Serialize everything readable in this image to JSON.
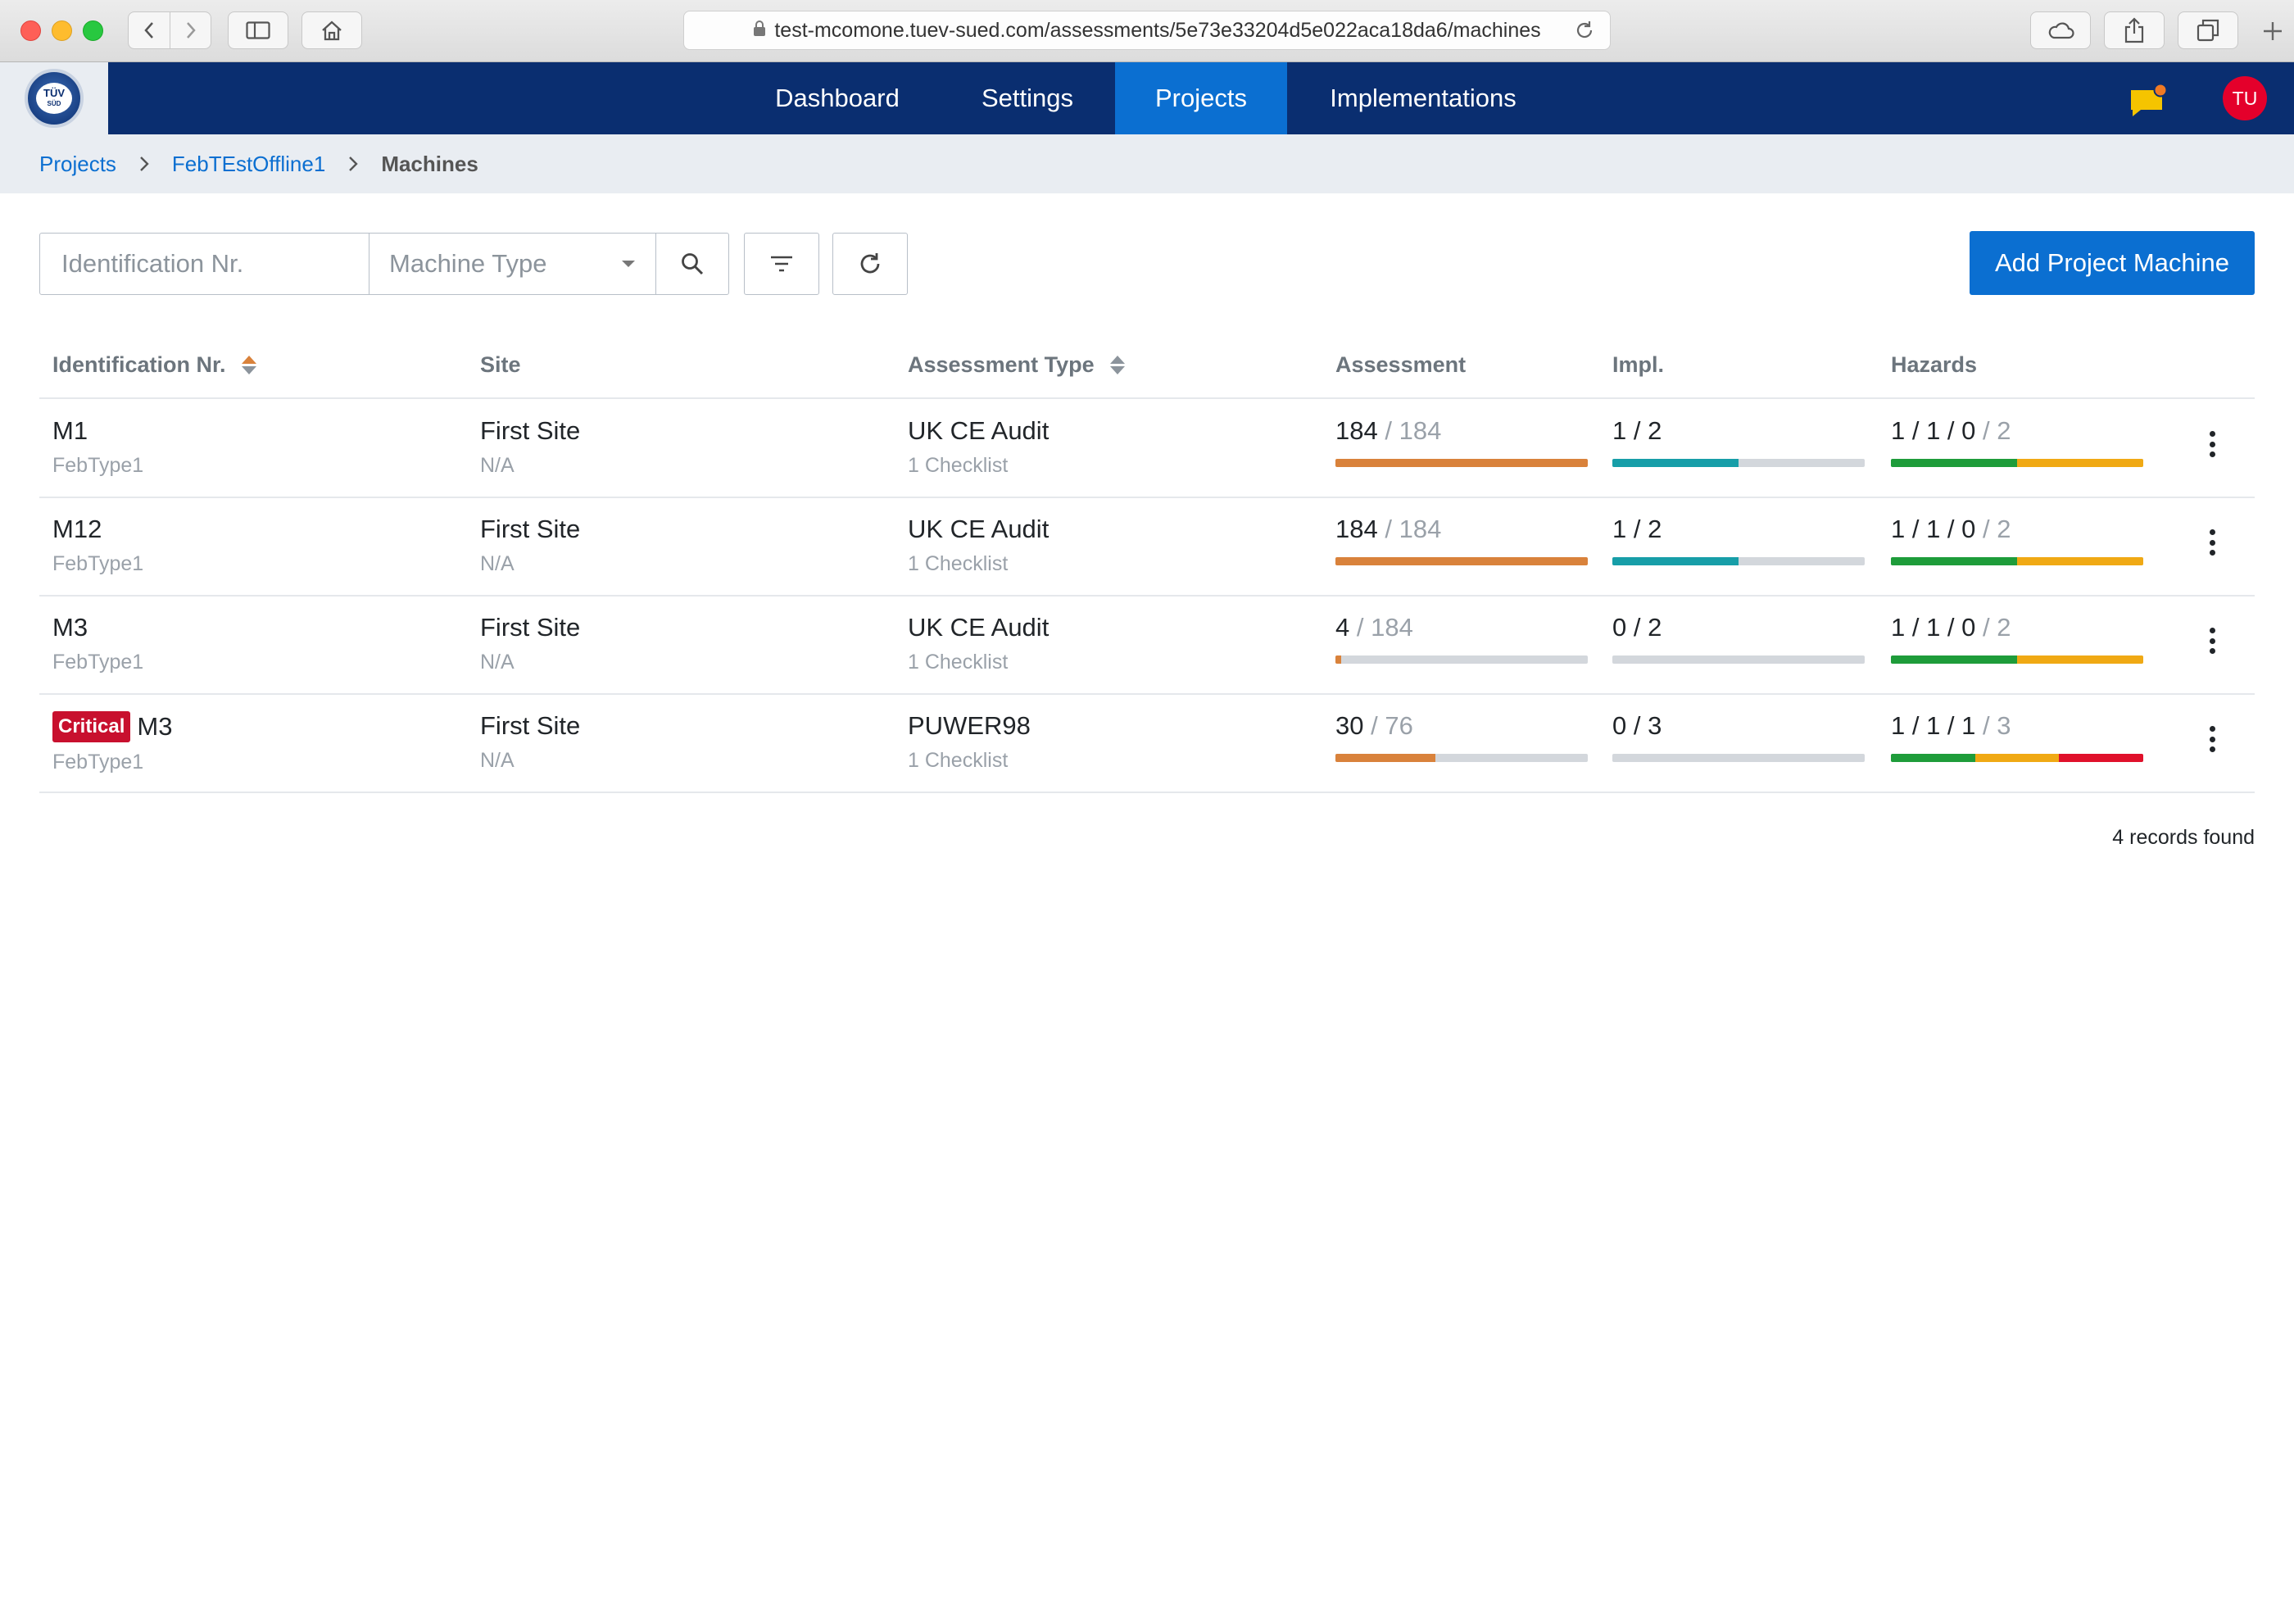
{
  "browser": {
    "url": "test-mcomone.tuev-sued.com/assessments/5e73e33204d5e022aca18da6/machines"
  },
  "header": {
    "logo_text": "TÜV",
    "logo_sub": "SÜD",
    "nav": [
      {
        "label": "Dashboard",
        "active": false
      },
      {
        "label": "Settings",
        "active": false
      },
      {
        "label": "Projects",
        "active": true
      },
      {
        "label": "Implementations",
        "active": false
      }
    ],
    "avatar_initials": "TU",
    "colors": {
      "header_bg": "#0a2e70",
      "accent": "#0b6fd1",
      "avatar": "#e4002b",
      "chat": "#f5c400"
    }
  },
  "breadcrumb": {
    "items": [
      "Projects",
      "FebTEstOffline1"
    ],
    "current": "Machines"
  },
  "toolbar": {
    "id_placeholder": "Identification Nr.",
    "type_placeholder": "Machine Type",
    "add_label": "Add Project Machine"
  },
  "table": {
    "columns": [
      "Identification Nr.",
      "Site",
      "Assessment Type",
      "Assessment",
      "Impl.",
      "Hazards"
    ],
    "rows": [
      {
        "badge": "",
        "id": "M1",
        "type": "FebType1",
        "site": "First Site",
        "site_sub": "N/A",
        "assessment_type": "UK CE Audit",
        "checklists": "1 Checklist",
        "assessment_done": "184",
        "assessment_total": "/ 184",
        "assessment_ratio": 1.0,
        "impl": "1 / 2",
        "impl_ratio": 0.5,
        "hazards_counts": "1 / 1 / 0",
        "hazards_total": "/ 2",
        "hazards_split": [
          1,
          1,
          0
        ]
      },
      {
        "badge": "",
        "id": "M12",
        "type": "FebType1",
        "site": "First Site",
        "site_sub": "N/A",
        "assessment_type": "UK CE Audit",
        "checklists": "1 Checklist",
        "assessment_done": "184",
        "assessment_total": "/ 184",
        "assessment_ratio": 1.0,
        "impl": "1 / 2",
        "impl_ratio": 0.5,
        "hazards_counts": "1 / 1 / 0",
        "hazards_total": "/ 2",
        "hazards_split": [
          1,
          1,
          0
        ]
      },
      {
        "badge": "",
        "id": "M3",
        "type": "FebType1",
        "site": "First Site",
        "site_sub": "N/A",
        "assessment_type": "UK CE Audit",
        "checklists": "1 Checklist",
        "assessment_done": "4",
        "assessment_total": "/ 184",
        "assessment_ratio": 0.022,
        "impl": "0 / 2",
        "impl_ratio": 0,
        "hazards_counts": "1 / 1 / 0",
        "hazards_total": "/ 2",
        "hazards_split": [
          1,
          1,
          0
        ]
      },
      {
        "badge": "Critical",
        "id": "M3",
        "type": "FebType1",
        "site": "First Site",
        "site_sub": "N/A",
        "assessment_type": "PUWER98",
        "checklists": "1 Checklist",
        "assessment_done": "30",
        "assessment_total": "/ 76",
        "assessment_ratio": 0.395,
        "impl": "0 / 3",
        "impl_ratio": 0,
        "hazards_counts": "1 / 1 / 1",
        "hazards_total": "/ 3",
        "hazards_split": [
          1,
          1,
          1
        ]
      }
    ],
    "colors": {
      "assessment": "#d9823b",
      "impl": "#179ea8",
      "hazard_low": "#1e9c3a",
      "hazard_mid": "#f0a914",
      "hazard_high": "#e0112b",
      "track": "#d3d7dc"
    }
  },
  "footer": {
    "records": "4 records found"
  }
}
